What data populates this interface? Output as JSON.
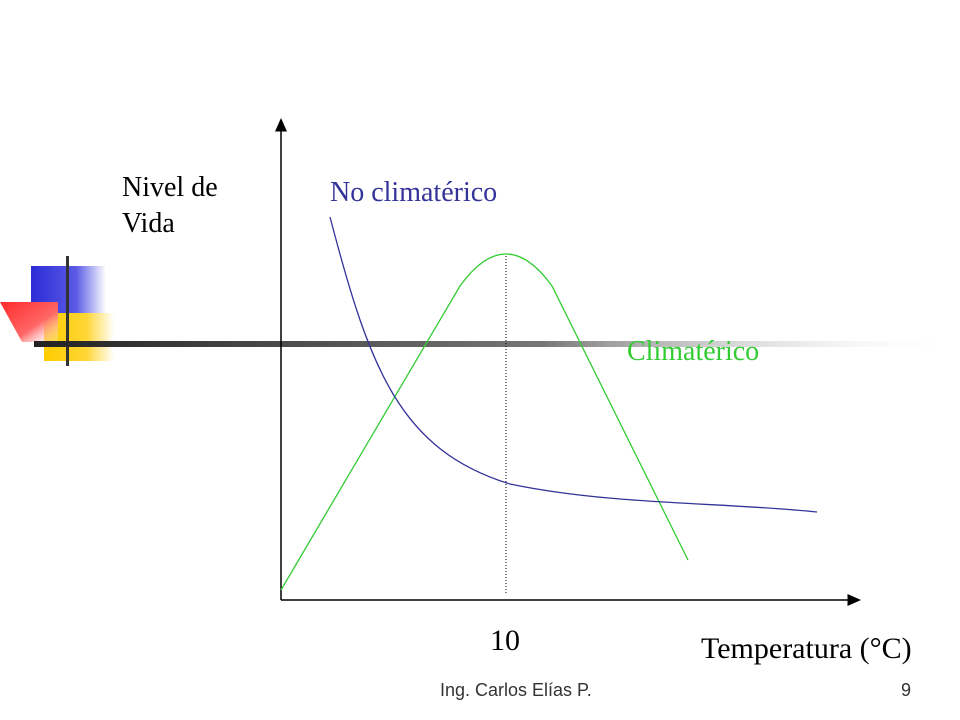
{
  "diagram": {
    "y_axis_label_line1": "Nivel de",
    "y_axis_label_line2": "Vida",
    "x_axis_label": "Temperatura (°C)",
    "x_tick_label": "10",
    "curves": [
      {
        "label": "No climatérico",
        "color": "#333399"
      },
      {
        "label": "Climatérico",
        "color": "#33cc33"
      }
    ]
  },
  "footer": {
    "author": "Ing. Carlos Elías P.",
    "page_number": "9"
  },
  "decoration": {
    "colors": {
      "blue": "#3333cc",
      "yellow": "#ffcc00",
      "red": "#ff3333",
      "bar": "#444444"
    }
  }
}
